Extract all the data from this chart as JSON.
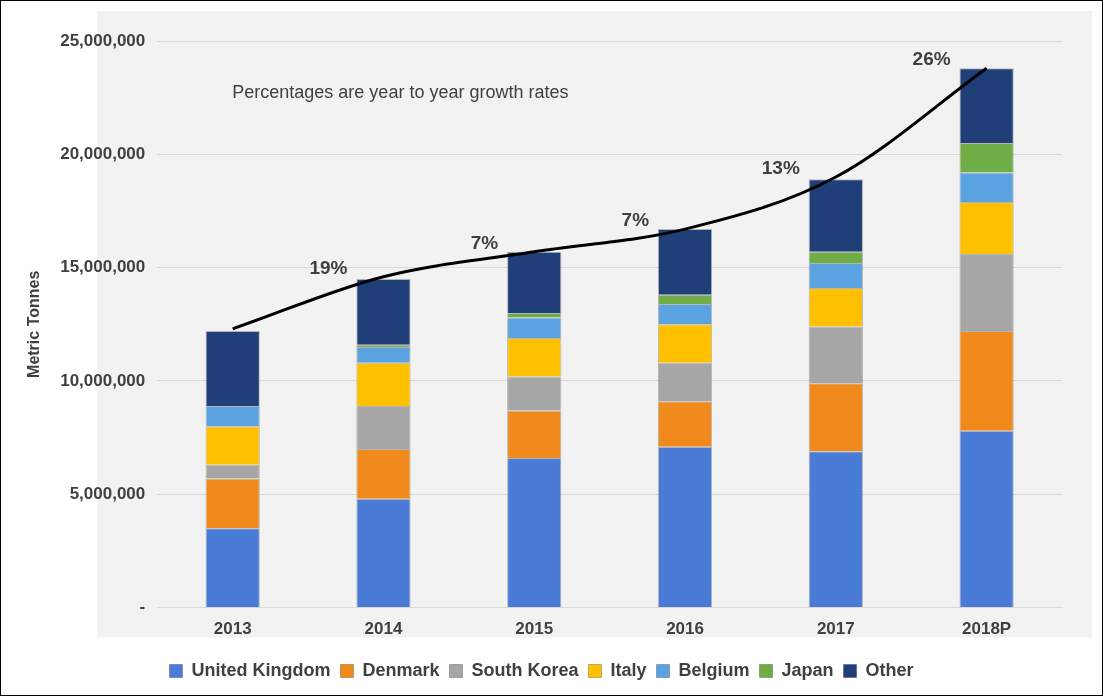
{
  "chart_data": {
    "type": "bar",
    "stacked": true,
    "ylabel": "Metric Tonnes",
    "categories": [
      "2013",
      "2014",
      "2015",
      "2016",
      "2017",
      "2018P"
    ],
    "series": [
      {
        "name": "United Kingdom",
        "color": "#4a7bd6",
        "values": [
          3500000,
          4800000,
          6600000,
          7100000,
          6900000,
          7800000
        ]
      },
      {
        "name": "Denmark",
        "color": "#f08a1c",
        "values": [
          2200000,
          2200000,
          2100000,
          2000000,
          3000000,
          4400000
        ]
      },
      {
        "name": "South Korea",
        "color": "#a6a6a6",
        "values": [
          600000,
          1900000,
          1500000,
          1700000,
          2500000,
          3400000
        ]
      },
      {
        "name": "Italy",
        "color": "#ffc000",
        "values": [
          1700000,
          1900000,
          1700000,
          1700000,
          1700000,
          2300000
        ]
      },
      {
        "name": "Belgium",
        "color": "#5ba3e0",
        "values": [
          900000,
          700000,
          900000,
          900000,
          1100000,
          1300000
        ]
      },
      {
        "name": "Japan",
        "color": "#70ad47",
        "values": [
          0,
          100000,
          200000,
          400000,
          500000,
          1300000
        ]
      },
      {
        "name": "Other",
        "color": "#203e78",
        "values": [
          3300000,
          2900000,
          2700000,
          2900000,
          3200000,
          3300000
        ]
      },
      {
        "type": "line",
        "color": "#000000",
        "values": [
          12300000,
          14600000,
          15700000,
          16700000,
          19000000,
          23800000
        ]
      }
    ],
    "ylim": [
      0,
      25000000
    ],
    "yticks": [
      {
        "value": 0,
        "label": "-"
      },
      {
        "value": 5000000,
        "label": "5,000,000"
      },
      {
        "value": 10000000,
        "label": "10,000,000"
      },
      {
        "value": 15000000,
        "label": "15,000,000"
      },
      {
        "value": 20000000,
        "label": "20,000,000"
      },
      {
        "value": 25000000,
        "label": "25,000,000"
      }
    ],
    "grid": "y",
    "legend": "bottom",
    "marker": "none",
    "annotations": [
      "Percentages are year to year growth rates",
      {
        "text": "19%",
        "x": "2014",
        "y": 14600000
      },
      {
        "text": "7%",
        "x": "2015",
        "y": 15700000
      },
      {
        "text": "7%",
        "x": "2016",
        "y": 16700000
      },
      {
        "text": "13%",
        "x": "2017",
        "y": 19000000
      },
      {
        "text": "26%",
        "x": "2018P",
        "y": 23800000
      }
    ]
  }
}
